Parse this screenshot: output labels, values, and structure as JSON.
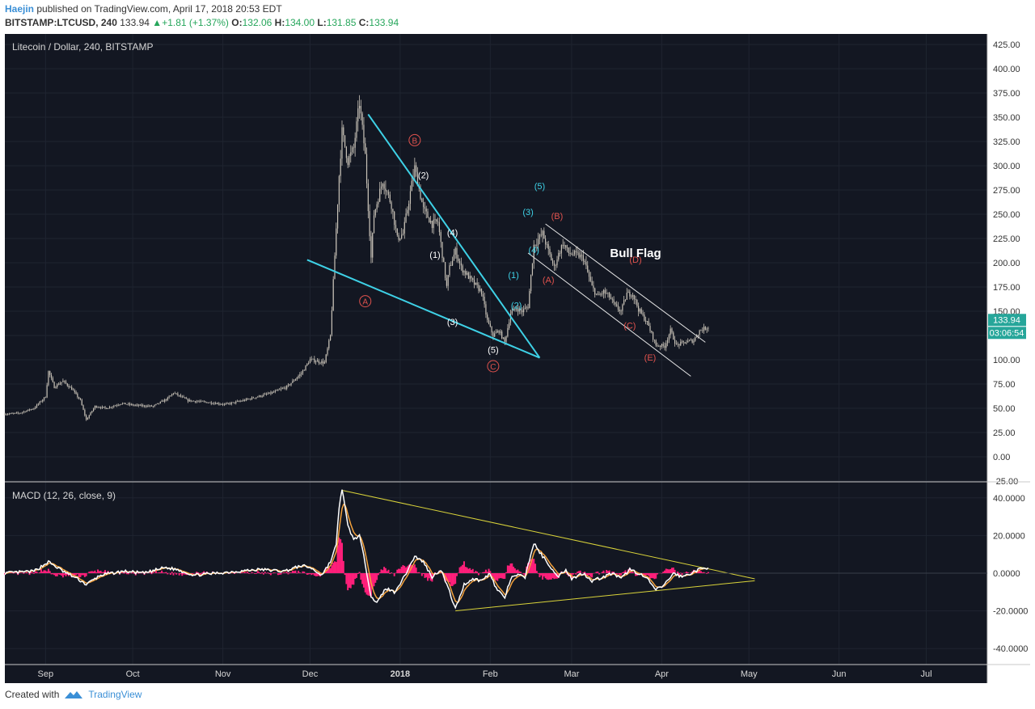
{
  "header": {
    "publisher": "Haejin",
    "published_text": "published on TradingView.com, April 17, 2018 20:53 EDT",
    "symbol": "BITSTAMP:LTCUSD, 240",
    "last": "133.94",
    "change": "+1.81 (+1.37%)",
    "o_label": "O:",
    "o": "132.06",
    "h_label": "H:",
    "h": "134.00",
    "l_label": "L:",
    "l": "131.85",
    "c_label": "C:",
    "c": "133.94"
  },
  "footer": {
    "created_with": "Created with",
    "brand": "TradingView"
  },
  "colors": {
    "bg": "#131722",
    "candle": "#c9c3b8",
    "cyan": "#3ed1e6",
    "red_label": "#e0524d",
    "white_label": "#ffffff",
    "macd_line": "#ffffff",
    "signal": "#f4a23c",
    "hist": "#ff1f7a",
    "yellow": "#d9d33a",
    "price_badge": "#26a69a"
  },
  "chart_data": [
    {
      "type": "candlestick",
      "title": "Litecoin / Dollar, 240, BITSTAMP",
      "x_ticks": [
        "Sep",
        "Oct",
        "Nov",
        "Dec",
        "2018",
        "Feb",
        "Mar",
        "Apr",
        "May",
        "Jun",
        "Jul"
      ],
      "x_range": [
        "2017-08-18",
        "2018-07-22"
      ],
      "y_ticks": [
        "425.00",
        "400.00",
        "375.00",
        "350.00",
        "325.00",
        "300.00",
        "275.00",
        "250.00",
        "225.00",
        "200.00",
        "175.00",
        "150.00",
        "125.00",
        "100.00",
        "75.00",
        "50.00",
        "25.00",
        "0.00",
        "-25.00"
      ],
      "ylim": [
        -25,
        425
      ],
      "last_price_badge": "133.94",
      "countdown_badge": "03:06:54",
      "price_path": [
        [
          "2017-08-18",
          44
        ],
        [
          "2017-08-23",
          45
        ],
        [
          "2017-08-28",
          50
        ],
        [
          "2017-09-01",
          62
        ],
        [
          "2017-09-02",
          88
        ],
        [
          "2017-09-04",
          72
        ],
        [
          "2017-09-07",
          78
        ],
        [
          "2017-09-10",
          70
        ],
        [
          "2017-09-13",
          58
        ],
        [
          "2017-09-15",
          38
        ],
        [
          "2017-09-18",
          52
        ],
        [
          "2017-09-22",
          50
        ],
        [
          "2017-09-27",
          55
        ],
        [
          "2017-10-02",
          53
        ],
        [
          "2017-10-08",
          52
        ],
        [
          "2017-10-13",
          60
        ],
        [
          "2017-10-15",
          66
        ],
        [
          "2017-10-20",
          58
        ],
        [
          "2017-10-27",
          56
        ],
        [
          "2017-11-02",
          54
        ],
        [
          "2017-11-08",
          58
        ],
        [
          "2017-11-13",
          62
        ],
        [
          "2017-11-18",
          66
        ],
        [
          "2017-11-23",
          72
        ],
        [
          "2017-11-28",
          86
        ],
        [
          "2017-12-01",
          100
        ],
        [
          "2017-12-06",
          97
        ],
        [
          "2017-12-08",
          125
        ],
        [
          "2017-12-11",
          290
        ],
        [
          "2017-12-12",
          335
        ],
        [
          "2017-12-14",
          305
        ],
        [
          "2017-12-16",
          318
        ],
        [
          "2017-12-18",
          365
        ],
        [
          "2017-12-20",
          310
        ],
        [
          "2017-12-22",
          205
        ],
        [
          "2017-12-23",
          250
        ],
        [
          "2017-12-26",
          285
        ],
        [
          "2017-12-29",
          260
        ],
        [
          "2017-12-31",
          225
        ],
        [
          "2018-01-02",
          230
        ],
        [
          "2018-01-06",
          298
        ],
        [
          "2018-01-09",
          255
        ],
        [
          "2018-01-12",
          240
        ],
        [
          "2018-01-14",
          242
        ],
        [
          "2018-01-17",
          175
        ],
        [
          "2018-01-18",
          195
        ],
        [
          "2018-01-20",
          212
        ],
        [
          "2018-01-22",
          195
        ],
        [
          "2018-01-26",
          180
        ],
        [
          "2018-01-29",
          170
        ],
        [
          "2018-01-31",
          140
        ],
        [
          "2018-02-02",
          125
        ],
        [
          "2018-02-04",
          130
        ],
        [
          "2018-02-06",
          118
        ],
        [
          "2018-02-08",
          148
        ],
        [
          "2018-02-10",
          153
        ],
        [
          "2018-02-12",
          150
        ],
        [
          "2018-02-14",
          155
        ],
        [
          "2018-02-16",
          218
        ],
        [
          "2018-02-19",
          230
        ],
        [
          "2018-02-21",
          212
        ],
        [
          "2018-02-23",
          195
        ],
        [
          "2018-02-24",
          205
        ],
        [
          "2018-02-26",
          220
        ],
        [
          "2018-02-28",
          210
        ],
        [
          "2018-03-03",
          208
        ],
        [
          "2018-03-05",
          205
        ],
        [
          "2018-03-08",
          175
        ],
        [
          "2018-03-10",
          165
        ],
        [
          "2018-03-12",
          170
        ],
        [
          "2018-03-14",
          165
        ],
        [
          "2018-03-16",
          155
        ],
        [
          "2018-03-18",
          150
        ],
        [
          "2018-03-20",
          168
        ],
        [
          "2018-03-22",
          168
        ],
        [
          "2018-03-24",
          152
        ],
        [
          "2018-03-27",
          138
        ],
        [
          "2018-03-30",
          115
        ],
        [
          "2018-04-02",
          114
        ],
        [
          "2018-04-04",
          130
        ],
        [
          "2018-04-06",
          115
        ],
        [
          "2018-04-09",
          118
        ],
        [
          "2018-04-12",
          120
        ],
        [
          "2018-04-14",
          130
        ],
        [
          "2018-04-17",
          133.94
        ]
      ],
      "annotations": [
        {
          "text": "A",
          "x": "2017-12-20",
          "y": 157,
          "style": "red-circle"
        },
        {
          "text": "B",
          "x": "2018-01-06",
          "y": 323,
          "style": "red-circle"
        },
        {
          "text": "C",
          "x": "2018-02-02",
          "y": 90,
          "style": "red-circle"
        },
        {
          "text": "(1)",
          "x": "2018-01-13",
          "y": 205,
          "style": "white"
        },
        {
          "text": "(2)",
          "x": "2018-01-09",
          "y": 287,
          "style": "white"
        },
        {
          "text": "(3)",
          "x": "2018-01-19",
          "y": 136,
          "style": "white"
        },
        {
          "text": "(4)",
          "x": "2018-01-19",
          "y": 228,
          "style": "white"
        },
        {
          "text": "(5)",
          "x": "2018-02-02",
          "y": 107,
          "style": "white"
        },
        {
          "text": "(1)",
          "x": "2018-02-09",
          "y": 184,
          "style": "cyan"
        },
        {
          "text": "(2)",
          "x": "2018-02-10",
          "y": 153,
          "style": "cyan"
        },
        {
          "text": "(3)",
          "x": "2018-02-14",
          "y": 249,
          "style": "cyan"
        },
        {
          "text": "(4)",
          "x": "2018-02-16",
          "y": 210,
          "style": "cyan"
        },
        {
          "text": "(5)",
          "x": "2018-02-18",
          "y": 276,
          "style": "cyan"
        },
        {
          "text": "(A)",
          "x": "2018-02-21",
          "y": 179,
          "style": "red"
        },
        {
          "text": "(B)",
          "x": "2018-02-24",
          "y": 245,
          "style": "red"
        },
        {
          "text": "(C)",
          "x": "2018-03-21",
          "y": 132,
          "style": "red"
        },
        {
          "text": "(D)",
          "x": "2018-03-23",
          "y": 200,
          "style": "red"
        },
        {
          "text": "(E)",
          "x": "2018-03-28",
          "y": 99,
          "style": "red"
        },
        {
          "text": "Bull Flag",
          "x": "2018-03-23",
          "y": 206,
          "style": "bold-white"
        }
      ],
      "trend_lines": [
        {
          "color": "cyan",
          "from": [
            "2017-11-30",
            203
          ],
          "to": [
            "2018-02-18",
            102
          ]
        },
        {
          "color": "cyan",
          "from": [
            "2017-12-21",
            353
          ],
          "to": [
            "2018-02-18",
            102
          ]
        },
        {
          "color": "white",
          "from": [
            "2018-02-20",
            240
          ],
          "to": [
            "2018-04-16",
            118
          ]
        },
        {
          "color": "white",
          "from": [
            "2018-02-14",
            210
          ],
          "to": [
            "2018-04-11",
            83
          ]
        }
      ]
    },
    {
      "type": "macd",
      "title": "MACD (12, 26, close, 9)",
      "y_ticks": [
        "40.0000",
        "20.0000",
        "0.0000",
        "-20.0000",
        "-40.0000"
      ],
      "ylim": [
        -47,
        47
      ],
      "macd_path": [
        [
          "2017-08-18",
          0
        ],
        [
          "2017-08-28",
          1
        ],
        [
          "2017-09-02",
          6
        ],
        [
          "2017-09-07",
          1
        ],
        [
          "2017-09-12",
          -3
        ],
        [
          "2017-09-15",
          -6
        ],
        [
          "2017-09-20",
          -1
        ],
        [
          "2017-09-28",
          1
        ],
        [
          "2017-10-05",
          0
        ],
        [
          "2017-10-12",
          3
        ],
        [
          "2017-10-16",
          2
        ],
        [
          "2017-10-22",
          -1
        ],
        [
          "2017-10-30",
          0
        ],
        [
          "2017-11-06",
          1
        ],
        [
          "2017-11-14",
          2
        ],
        [
          "2017-11-22",
          1
        ],
        [
          "2017-11-28",
          4
        ],
        [
          "2017-12-01",
          3
        ],
        [
          "2017-12-05",
          -1
        ],
        [
          "2017-12-08",
          6
        ],
        [
          "2017-12-10",
          15
        ],
        [
          "2017-12-11",
          35
        ],
        [
          "2017-12-12",
          45
        ],
        [
          "2017-12-14",
          25
        ],
        [
          "2017-12-16",
          18
        ],
        [
          "2017-12-18",
          20
        ],
        [
          "2017-12-20",
          5
        ],
        [
          "2017-12-22",
          -12
        ],
        [
          "2017-12-24",
          -16
        ],
        [
          "2017-12-27",
          -8
        ],
        [
          "2017-12-30",
          -10
        ],
        [
          "2018-01-02",
          -3
        ],
        [
          "2018-01-06",
          9
        ],
        [
          "2018-01-09",
          6
        ],
        [
          "2018-01-12",
          -2
        ],
        [
          "2018-01-15",
          2
        ],
        [
          "2018-01-18",
          -10
        ],
        [
          "2018-01-20",
          -19
        ],
        [
          "2018-01-23",
          -6
        ],
        [
          "2018-01-26",
          -3
        ],
        [
          "2018-01-29",
          -4
        ],
        [
          "2018-02-01",
          0
        ],
        [
          "2018-02-03",
          -8
        ],
        [
          "2018-02-06",
          -13
        ],
        [
          "2018-02-08",
          -3
        ],
        [
          "2018-02-10",
          -1
        ],
        [
          "2018-02-13",
          -2
        ],
        [
          "2018-02-16",
          16
        ],
        [
          "2018-02-18",
          11
        ],
        [
          "2018-02-21",
          5
        ],
        [
          "2018-02-24",
          -2
        ],
        [
          "2018-02-27",
          2
        ],
        [
          "2018-03-01",
          -3
        ],
        [
          "2018-03-05",
          0
        ],
        [
          "2018-03-08",
          -4
        ],
        [
          "2018-03-12",
          -2
        ],
        [
          "2018-03-15",
          0
        ],
        [
          "2018-03-18",
          -3
        ],
        [
          "2018-03-21",
          2
        ],
        [
          "2018-03-24",
          0
        ],
        [
          "2018-03-27",
          -3
        ],
        [
          "2018-03-30",
          -9
        ],
        [
          "2018-04-02",
          -6
        ],
        [
          "2018-04-05",
          0
        ],
        [
          "2018-04-08",
          -2
        ],
        [
          "2018-04-11",
          0
        ],
        [
          "2018-04-14",
          2
        ],
        [
          "2018-04-17",
          3
        ]
      ],
      "trend_lines": [
        {
          "color": "yellow",
          "from": [
            "2017-12-12",
            44
          ],
          "to": [
            "2018-05-03",
            -3
          ]
        },
        {
          "color": "yellow",
          "from": [
            "2018-01-20",
            -20
          ],
          "to": [
            "2018-05-03",
            -4
          ]
        }
      ]
    }
  ]
}
